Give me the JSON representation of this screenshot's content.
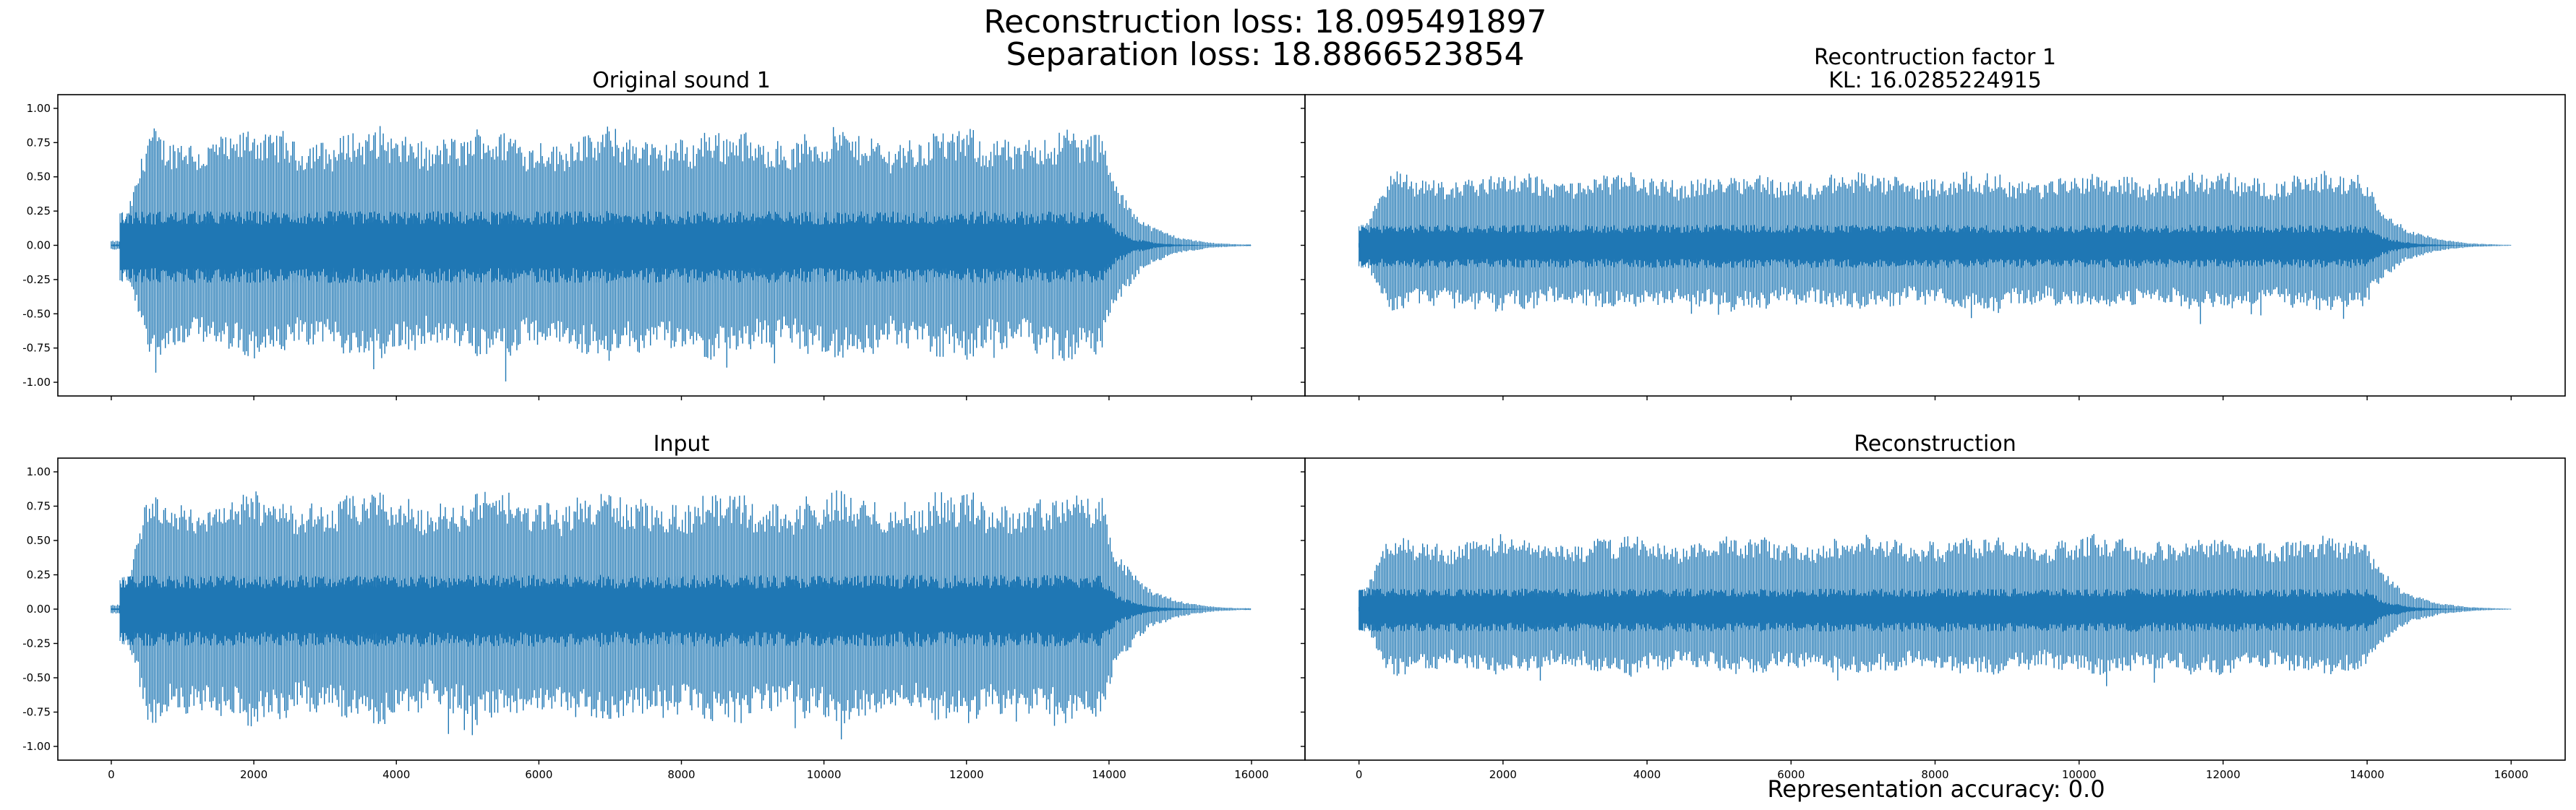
{
  "figure": {
    "suptitle_line1": "Reconstruction loss: 18.095491897",
    "suptitle_line2": "Separation loss: 18.8866523854",
    "footer": "Representation accuracy: 0.0",
    "line_color": "#1f77b4"
  },
  "chart_data": [
    {
      "type": "line",
      "panel": "top-left",
      "title_lines": [
        "Original sound 1"
      ],
      "xlim": [
        -750,
        16750
      ],
      "ylim": [
        -1.1,
        1.1
      ],
      "xticks": [
        0,
        2000,
        4000,
        6000,
        8000,
        10000,
        12000,
        14000,
        16000
      ],
      "yticks": [
        1.0,
        0.75,
        0.5,
        0.25,
        0.0,
        -0.25,
        -0.5,
        -0.75,
        -1.0
      ],
      "show_xticklabels": false,
      "show_yticklabels": true,
      "signal": {
        "n_samples": 16000,
        "onset": 120,
        "offset": 13900,
        "decay_end": 15900,
        "top_peak": 0.8,
        "bottom_peak": -0.78,
        "min_value": -1.0,
        "inner_band": 0.25
      }
    },
    {
      "type": "line",
      "panel": "top-right",
      "title_lines": [
        "Recontruction factor 1",
        "KL: 16.0285224915"
      ],
      "xlim": [
        -750,
        16750
      ],
      "ylim": [
        -1.1,
        1.1
      ],
      "xticks": [
        0,
        2000,
        4000,
        6000,
        8000,
        10000,
        12000,
        14000,
        16000
      ],
      "yticks": [
        1.0,
        0.75,
        0.5,
        0.25,
        0.0,
        -0.25,
        -0.5,
        -0.75,
        -1.0
      ],
      "show_xticklabels": false,
      "show_yticklabels": false,
      "signal": {
        "n_samples": 16000,
        "onset": 0,
        "offset": 14000,
        "decay_end": 16000,
        "top_peak": 0.5,
        "bottom_peak": -0.45,
        "min_value": -0.65,
        "inner_band": 0.15
      }
    },
    {
      "type": "line",
      "panel": "bottom-left",
      "title_lines": [
        "Input"
      ],
      "xlim": [
        -750,
        16750
      ],
      "ylim": [
        -1.1,
        1.1
      ],
      "xticks": [
        0,
        2000,
        4000,
        6000,
        8000,
        10000,
        12000,
        14000,
        16000
      ],
      "yticks": [
        1.0,
        0.75,
        0.5,
        0.25,
        0.0,
        -0.25,
        -0.5,
        -0.75,
        -1.0
      ],
      "show_xticklabels": true,
      "show_yticklabels": true,
      "signal": {
        "n_samples": 16000,
        "onset": 120,
        "offset": 13900,
        "decay_end": 15900,
        "top_peak": 0.8,
        "bottom_peak": -0.78,
        "min_value": -0.95,
        "inner_band": 0.25
      }
    },
    {
      "type": "line",
      "panel": "bottom-right",
      "title_lines": [
        "Reconstruction"
      ],
      "xlim": [
        -750,
        16750
      ],
      "ylim": [
        -1.1,
        1.1
      ],
      "xticks": [
        0,
        2000,
        4000,
        6000,
        8000,
        10000,
        12000,
        14000,
        16000
      ],
      "yticks": [
        1.0,
        0.75,
        0.5,
        0.25,
        0.0,
        -0.25,
        -0.5,
        -0.75,
        -1.0
      ],
      "show_xticklabels": true,
      "show_yticklabels": false,
      "signal": {
        "n_samples": 16000,
        "onset": 0,
        "offset": 14000,
        "decay_end": 16000,
        "top_peak": 0.5,
        "bottom_peak": -0.45,
        "min_value": -0.65,
        "inner_band": 0.15
      }
    }
  ]
}
